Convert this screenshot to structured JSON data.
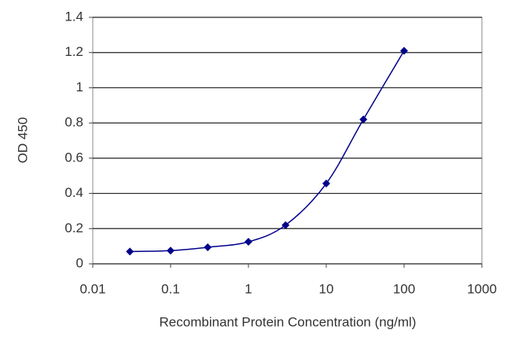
{
  "chart_data": {
    "type": "line",
    "x_label": "Recombinant Protein Concentration (ng/ml)",
    "y_label": "OD 450",
    "x": [
      0.03,
      0.1,
      0.3,
      1,
      3,
      10,
      30,
      100
    ],
    "series": [
      {
        "color": "#00008b",
        "values": [
          0.07,
          0.075,
          0.094,
          0.125,
          0.22,
          0.456,
          0.82,
          1.21
        ]
      }
    ],
    "xscale": "log",
    "xlim": [
      0.01,
      1000
    ],
    "xticks": [
      0.01,
      0.1,
      1,
      10,
      100,
      1000
    ],
    "ylim": [
      0,
      1.4
    ],
    "yticks": [
      0,
      0.2,
      0.4,
      0.6,
      0.8,
      1,
      1.2,
      1.4
    ],
    "grid": true
  }
}
